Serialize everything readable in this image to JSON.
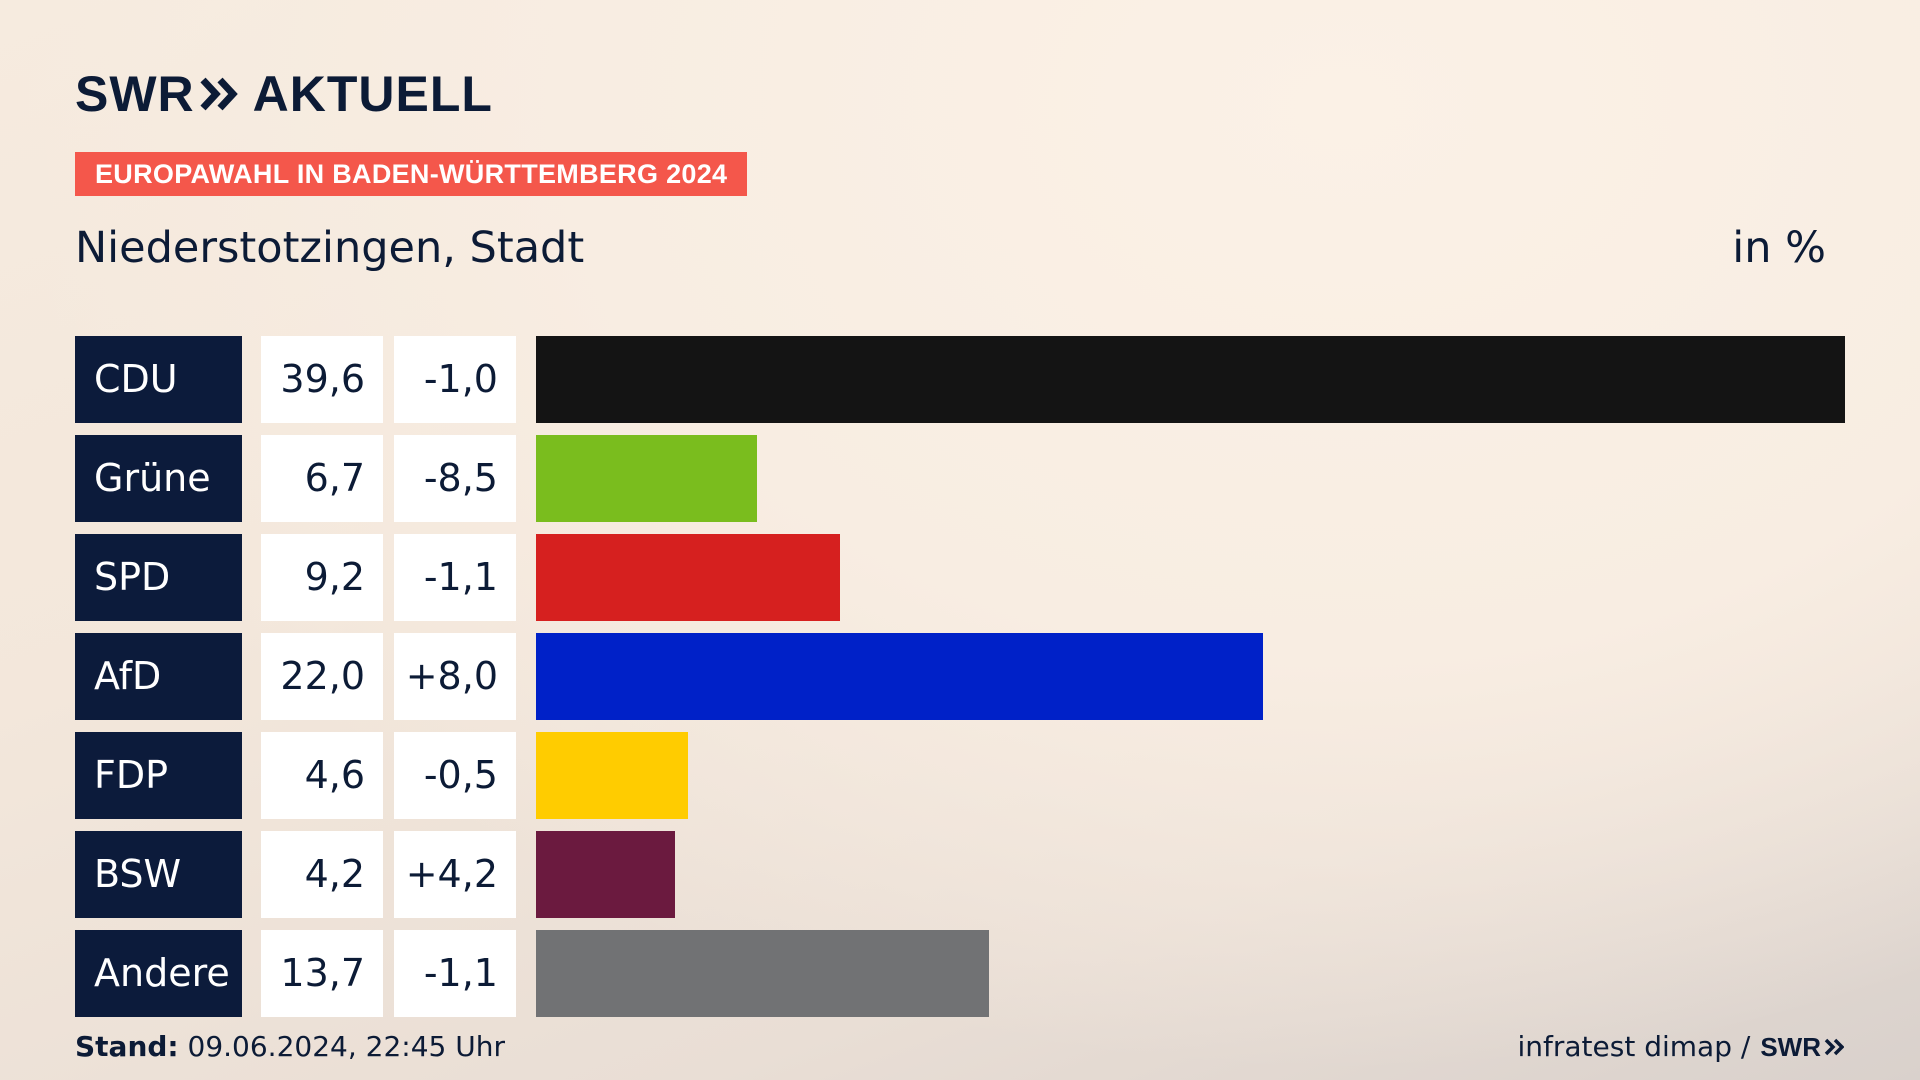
{
  "header": {
    "logo_left": "SWR",
    "logo_right": "AKTUELL",
    "logo_chevron_icon": "double-chevron-right-icon",
    "banner": "EUROPAWAHL IN BADEN-WÜRTTEMBERG 2024",
    "subtitle": "Niederstotzingen, Stadt",
    "unit": "in %"
  },
  "colors": {
    "banner": "#f4574b",
    "party_box": "#0c1b3b",
    "text": "#0c1b36"
  },
  "chart_data": {
    "type": "bar",
    "orientation": "horizontal",
    "categories": [
      "CDU",
      "Grüne",
      "SPD",
      "AfD",
      "FDP",
      "BSW",
      "Andere"
    ],
    "values": [
      39.6,
      6.7,
      9.2,
      22.0,
      4.6,
      4.2,
      13.7
    ],
    "value_labels": [
      "39,6",
      "6,7",
      "9,2",
      "22,0",
      "4,6",
      "4,2",
      "13,7"
    ],
    "change_labels": [
      "-1,0",
      "-8,5",
      "-1,1",
      "+8,0",
      "-0,5",
      "+4,2",
      "-1,1"
    ],
    "changes": [
      -1.0,
      -8.5,
      -1.1,
      8.0,
      -0.5,
      4.2,
      -1.1
    ],
    "bar_colors": [
      "#141414",
      "#7abd1e",
      "#d6201f",
      "#0021c8",
      "#ffcc00",
      "#6b1a3f",
      "#717274"
    ],
    "xlim": [
      0,
      39.6
    ],
    "grid": false,
    "legend": "none"
  },
  "footer": {
    "stand_label": "Stand:",
    "stand_value": " 09.06.2024, 22:45 Uhr",
    "source": "infratest dimap /",
    "source_logo": "SWR"
  }
}
